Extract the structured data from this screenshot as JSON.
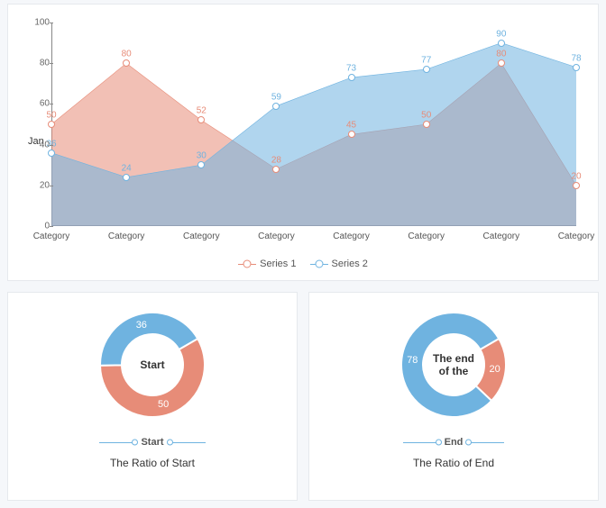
{
  "area_chart": {
    "type": "area",
    "y_axis_title": "Jan",
    "ylim": [
      0,
      100
    ],
    "ytick_step": 20,
    "yticks": [
      0,
      20,
      40,
      60,
      80,
      100
    ],
    "categories": [
      "Category",
      "Category",
      "Category",
      "Category",
      "Category",
      "Category",
      "Category",
      "Category"
    ],
    "series": [
      {
        "name": "Series 1",
        "color": "#e78c78",
        "fill": "rgba(231,140,120,0.55)",
        "values": [
          50,
          80,
          52,
          28,
          45,
          50,
          80,
          20
        ]
      },
      {
        "name": "Series 2",
        "color": "#6fb3e0",
        "fill": "rgba(111,179,224,0.55)",
        "values": [
          36,
          24,
          30,
          59,
          73,
          77,
          90,
          78
        ]
      }
    ],
    "background_color": "#ffffff",
    "axis_color": "#888888",
    "label_fontsize": 10,
    "marker_radius": 4
  },
  "donut_left": {
    "type": "donut",
    "center_label": "Start",
    "title": "The Ratio of Start",
    "legend_label": "Start",
    "slices": [
      {
        "label": "50",
        "value": 50,
        "color": "#e78c78"
      },
      {
        "label": "36",
        "value": 36,
        "color": "#6fb3e0"
      }
    ],
    "inner_radius": 34,
    "outer_radius": 58,
    "start_angle_deg": -30
  },
  "donut_right": {
    "type": "donut",
    "center_label": "The end of the",
    "title": "The Ratio of End",
    "legend_label": "End",
    "slices": [
      {
        "label": "20",
        "value": 20,
        "color": "#e78c78"
      },
      {
        "label": "78",
        "value": 78,
        "color": "#6fb3e0"
      }
    ],
    "inner_radius": 34,
    "outer_radius": 58,
    "start_angle_deg": -30
  }
}
